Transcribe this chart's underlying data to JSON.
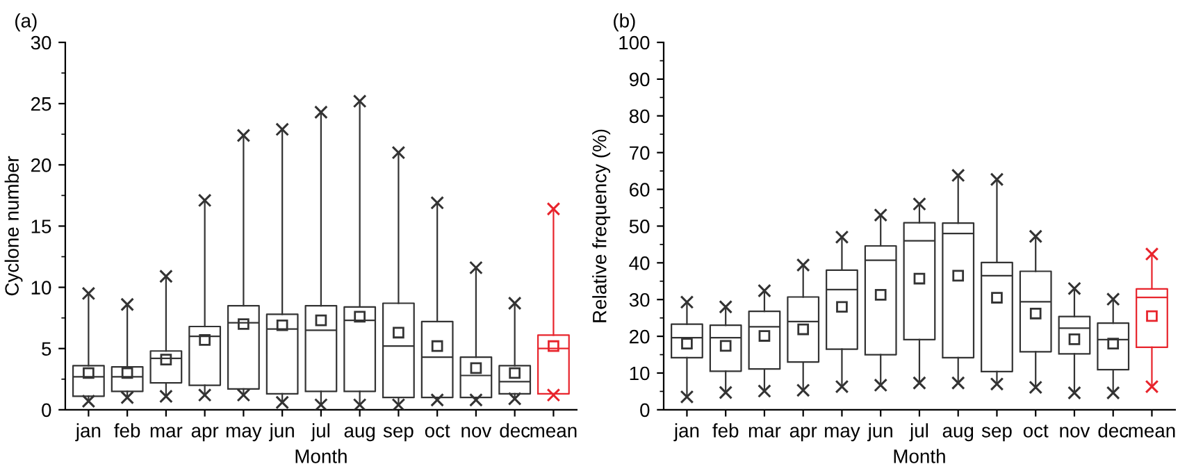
{
  "chart_data": [
    {
      "type": "box",
      "title": "(a)",
      "xlabel": "Month",
      "ylabel": "Cyclone number",
      "categories": [
        "jan",
        "feb",
        "mar",
        "apr",
        "may",
        "jun",
        "jul",
        "aug",
        "sep",
        "oct",
        "nov",
        "dec",
        "mean"
      ],
      "ylim": [
        0,
        30
      ],
      "yticks": [
        0,
        5,
        10,
        15,
        20,
        25,
        30
      ],
      "grid": false,
      "colors": [
        "#333333",
        "#333333",
        "#333333",
        "#333333",
        "#333333",
        "#333333",
        "#333333",
        "#333333",
        "#333333",
        "#333333",
        "#333333",
        "#333333",
        "#e8242c"
      ],
      "boxes": [
        {
          "low": 0.7,
          "q1": 1.1,
          "median": 2.7,
          "q3": 3.6,
          "high": 9.5,
          "mean": 3.0
        },
        {
          "low": 1.0,
          "q1": 1.5,
          "median": 2.7,
          "q3": 3.5,
          "high": 8.6,
          "mean": 3.0
        },
        {
          "low": 1.1,
          "q1": 2.2,
          "median": 4.2,
          "q3": 4.8,
          "high": 10.9,
          "mean": 4.1
        },
        {
          "low": 1.2,
          "q1": 2.0,
          "median": 6.0,
          "q3": 6.8,
          "high": 17.1,
          "mean": 5.7
        },
        {
          "low": 1.2,
          "q1": 1.7,
          "median": 7.1,
          "q3": 8.5,
          "high": 22.4,
          "mean": 7.0
        },
        {
          "low": 0.6,
          "q1": 1.3,
          "median": 6.6,
          "q3": 7.8,
          "high": 22.9,
          "mean": 6.9
        },
        {
          "low": 0.4,
          "q1": 1.5,
          "median": 6.5,
          "q3": 8.5,
          "high": 24.3,
          "mean": 7.3
        },
        {
          "low": 0.4,
          "q1": 1.5,
          "median": 7.3,
          "q3": 8.4,
          "high": 25.2,
          "mean": 7.6
        },
        {
          "low": 0.4,
          "q1": 1.0,
          "median": 5.2,
          "q3": 8.7,
          "high": 21.0,
          "mean": 6.3
        },
        {
          "low": 0.8,
          "q1": 1.0,
          "median": 4.3,
          "q3": 7.2,
          "high": 16.9,
          "mean": 5.2
        },
        {
          "low": 0.8,
          "q1": 1.0,
          "median": 2.8,
          "q3": 4.3,
          "high": 11.6,
          "mean": 3.4
        },
        {
          "low": 0.9,
          "q1": 1.3,
          "median": 2.3,
          "q3": 3.6,
          "high": 8.7,
          "mean": 3.0
        },
        {
          "low": 1.2,
          "q1": 1.3,
          "median": 5.0,
          "q3": 6.1,
          "high": 16.4,
          "mean": 5.2
        }
      ],
      "series": [
        {
          "type": "scatter",
          "marker": "cross",
          "x": [
            "jan",
            "feb",
            "mar",
            "apr",
            "may",
            "jun",
            "jul",
            "aug",
            "sep",
            "oct",
            "nov",
            "dec",
            "mean"
          ],
          "colors": [
            "#333333",
            "#333333",
            "#333333",
            "#333333",
            "#333333",
            "#333333",
            "#333333",
            "#333333",
            "#333333",
            "#333333",
            "#333333",
            "#333333",
            "#e8242c"
          ],
          "values": [
            0.7,
            1.0,
            1.1,
            1.2,
            1.2,
            0.6,
            0.4,
            0.4,
            0.4,
            0.8,
            0.8,
            0.9,
            1.2
          ]
        },
        {
          "type": "scatter",
          "marker": "cross",
          "x": [
            "jan",
            "feb",
            "mar",
            "apr",
            "may",
            "jun",
            "jul",
            "aug",
            "sep",
            "oct",
            "nov",
            "dec",
            "mean"
          ],
          "colors": [
            "#333333",
            "#333333",
            "#333333",
            "#333333",
            "#333333",
            "#333333",
            "#333333",
            "#333333",
            "#333333",
            "#333333",
            "#333333",
            "#333333",
            "#e8242c"
          ],
          "values": [
            9.5,
            8.6,
            10.9,
            17.1,
            22.4,
            22.9,
            24.3,
            25.2,
            21.0,
            16.9,
            11.6,
            8.7,
            16.4
          ]
        }
      ]
    },
    {
      "type": "box",
      "title": "(b)",
      "xlabel": "Month",
      "ylabel": "Relative frequency (%)",
      "categories": [
        "jan",
        "feb",
        "mar",
        "apr",
        "may",
        "jun",
        "jul",
        "aug",
        "sep",
        "oct",
        "nov",
        "dec",
        "mean"
      ],
      "ylim": [
        0,
        100
      ],
      "yticks": [
        0,
        10,
        20,
        30,
        40,
        50,
        60,
        70,
        80,
        90,
        100
      ],
      "grid": false,
      "colors": [
        "#333333",
        "#333333",
        "#333333",
        "#333333",
        "#333333",
        "#333333",
        "#333333",
        "#333333",
        "#333333",
        "#333333",
        "#333333",
        "#333333",
        "#e8242c"
      ],
      "boxes": [
        {
          "low": 3.5,
          "q1": 14.2,
          "median": 19.6,
          "q3": 23.3,
          "high": 29.3,
          "mean": 18.0
        },
        {
          "low": 4.7,
          "q1": 10.5,
          "median": 19.6,
          "q3": 23.0,
          "high": 28.0,
          "mean": 17.4
        },
        {
          "low": 5.1,
          "q1": 11.1,
          "median": 22.6,
          "q3": 26.8,
          "high": 32.4,
          "mean": 20.1
        },
        {
          "low": 5.3,
          "q1": 13.0,
          "median": 24.0,
          "q3": 30.7,
          "high": 39.4,
          "mean": 21.9
        },
        {
          "low": 6.3,
          "q1": 16.5,
          "median": 32.7,
          "q3": 38.0,
          "high": 47.0,
          "mean": 28.0
        },
        {
          "low": 6.7,
          "q1": 15.0,
          "median": 40.7,
          "q3": 44.6,
          "high": 53.0,
          "mean": 31.3
        },
        {
          "low": 7.3,
          "q1": 19.1,
          "median": 46.0,
          "q3": 50.9,
          "high": 56.0,
          "mean": 35.7
        },
        {
          "low": 7.3,
          "q1": 14.2,
          "median": 48.0,
          "q3": 50.8,
          "high": 63.8,
          "mean": 36.5
        },
        {
          "low": 7.0,
          "q1": 10.4,
          "median": 36.5,
          "q3": 40.1,
          "high": 62.7,
          "mean": 30.5
        },
        {
          "low": 6.1,
          "q1": 15.8,
          "median": 29.4,
          "q3": 37.7,
          "high": 47.2,
          "mean": 26.2
        },
        {
          "low": 4.6,
          "q1": 15.2,
          "median": 22.2,
          "q3": 25.4,
          "high": 33.0,
          "mean": 19.2
        },
        {
          "low": 4.6,
          "q1": 10.9,
          "median": 19.1,
          "q3": 23.6,
          "high": 30.1,
          "mean": 18.0
        },
        {
          "low": 6.3,
          "q1": 17.0,
          "median": 30.6,
          "q3": 32.9,
          "high": 42.4,
          "mean": 25.5
        }
      ],
      "series": [
        {
          "type": "scatter",
          "marker": "cross",
          "x": [
            "jan",
            "feb",
            "mar",
            "apr",
            "may",
            "jun",
            "jul",
            "aug",
            "sep",
            "oct",
            "nov",
            "dec",
            "mean"
          ],
          "colors": [
            "#333333",
            "#333333",
            "#333333",
            "#333333",
            "#333333",
            "#333333",
            "#333333",
            "#333333",
            "#333333",
            "#333333",
            "#333333",
            "#333333",
            "#e8242c"
          ],
          "values": [
            3.5,
            4.7,
            5.1,
            5.3,
            6.3,
            6.7,
            7.3,
            7.3,
            7.0,
            6.1,
            4.6,
            4.6,
            6.3
          ]
        },
        {
          "type": "scatter",
          "marker": "cross",
          "x": [
            "jan",
            "feb",
            "mar",
            "apr",
            "may",
            "jun",
            "jul",
            "aug",
            "sep",
            "oct",
            "nov",
            "dec",
            "mean"
          ],
          "colors": [
            "#333333",
            "#333333",
            "#333333",
            "#333333",
            "#333333",
            "#333333",
            "#333333",
            "#333333",
            "#333333",
            "#333333",
            "#333333",
            "#333333",
            "#e8242c"
          ],
          "values": [
            29.3,
            28.0,
            32.4,
            39.4,
            47.0,
            53.0,
            56.0,
            63.8,
            62.7,
            47.2,
            33.0,
            30.1,
            42.4
          ]
        }
      ]
    }
  ]
}
